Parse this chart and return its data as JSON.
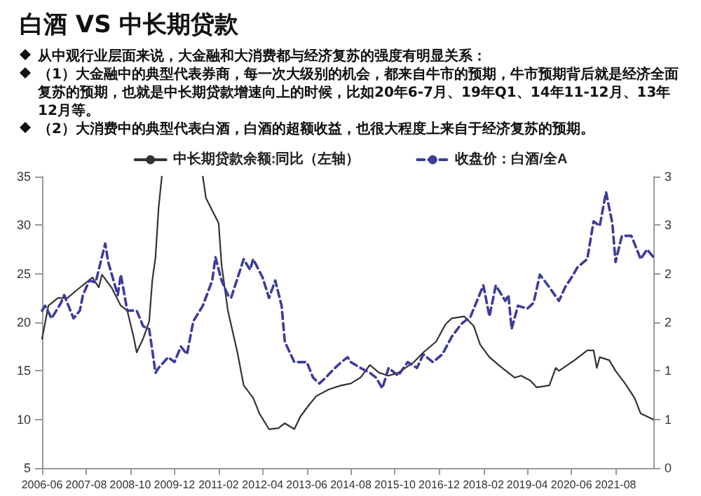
{
  "chart_data": {
    "type": "line",
    "title": "白酒 VS 中长期贷款",
    "annotations": [
      "从中观行业层面来说，大金融和大消费都与经济复苏的强度有明显关系：",
      "（1）大金融中的典型代表券商，每一次大级别的机会，都来自牛市的预期，牛市预期背后就是经济全面复苏的预期，也就是中长期贷款增速向上的时候，比如20年6-7月、19年Q1、14年11-12月、13年12月等。",
      "（2）大消费中的典型代表白酒，白酒的超额收益，也很大程度上来自于经济复苏的预期。"
    ],
    "xlim": [
      "2006-06",
      "2022-08"
    ],
    "xticks": [
      "2006-06",
      "2007-08",
      "2008-10",
      "2009-12",
      "2011-02",
      "2012-04",
      "2013-06",
      "2014-08",
      "2015-10",
      "2016-12",
      "2018-02",
      "2019-04",
      "2020-06",
      "2021-08"
    ],
    "ylim": [
      5,
      35
    ],
    "yticks": [
      5,
      10,
      15,
      20,
      25,
      30,
      35
    ],
    "y2lim": [
      0,
      3
    ],
    "y2ticks": [
      {
        "value": 0,
        "label": "0"
      },
      {
        "value": 0.5,
        "label": "1"
      },
      {
        "value": 1,
        "label": "1"
      },
      {
        "value": 1.5,
        "label": "2"
      },
      {
        "value": 2,
        "label": "2"
      },
      {
        "value": 2.5,
        "label": "3"
      },
      {
        "value": 3,
        "label": "3"
      }
    ],
    "grid": false,
    "legend": "top",
    "marker": "none",
    "series": [
      {
        "name": "中长期贷款余额:同比（左轴）",
        "color": "#333333",
        "line_style": "solid",
        "x": [
          "2006-06",
          "2006-08",
          "2006-11",
          "2007-02",
          "2007-05",
          "2007-10",
          "2007-12",
          "2008-01",
          "2008-04",
          "2008-07",
          "2008-09",
          "2008-11",
          "2008-12",
          "2009-02",
          "2009-04",
          "2009-05",
          "2009-06",
          "2009-07",
          "2009-08",
          "2010-01",
          "2010-09",
          "2010-10",
          "2010-12",
          "2011-02",
          "2011-03",
          "2011-05",
          "2011-08",
          "2011-10",
          "2012-01",
          "2012-03",
          "2012-06",
          "2012-09",
          "2012-11",
          "2013-02",
          "2013-04",
          "2013-07",
          "2013-09",
          "2014-01",
          "2014-05",
          "2014-08",
          "2014-11",
          "2015-02",
          "2015-05",
          "2015-08",
          "2015-11",
          "2016-04",
          "2016-07",
          "2016-11",
          "2017-02",
          "2017-04",
          "2017-08",
          "2017-11",
          "2018-01",
          "2018-04",
          "2018-08",
          "2018-12",
          "2019-02",
          "2019-05",
          "2019-07",
          "2019-11",
          "2020-01",
          "2020-02",
          "2020-07",
          "2020-11",
          "2021-01",
          "2021-02",
          "2021-03",
          "2021-06",
          "2021-08",
          "2021-11",
          "2022-02",
          "2022-04",
          "2022-06",
          "2022-08"
        ],
        "values": [
          18.3,
          21.7,
          22.5,
          22.5,
          23.3,
          24.6,
          23.6,
          24.9,
          23.6,
          21.7,
          21.2,
          18.5,
          16.9,
          18.3,
          20.1,
          24.3,
          26.7,
          31.8,
          35,
          null,
          35,
          32.8,
          31.5,
          30.2,
          25.9,
          21.2,
          16.9,
          13.5,
          12.2,
          10.6,
          9.0,
          9.1,
          9.6,
          9.0,
          10.3,
          11.6,
          12.4,
          13.1,
          13.5,
          13.7,
          14.3,
          15.6,
          14.8,
          14.5,
          14.8,
          15.9,
          16.9,
          18.0,
          19.8,
          20.4,
          20.6,
          19.6,
          17.7,
          16.4,
          15.3,
          14.3,
          14.5,
          14.0,
          13.3,
          13.5,
          15.3,
          15.0,
          16.1,
          17.1,
          17.1,
          15.3,
          16.4,
          16.1,
          15.0,
          13.7,
          12.2,
          10.6,
          10.3,
          10.0
        ]
      },
      {
        "name": "收盘价：白酒/全A",
        "color": "#3c3c9c",
        "line_style": "dashed",
        "axis": "y2",
        "x": [
          "2006-06",
          "2006-07",
          "2006-09",
          "2006-12",
          "2007-01",
          "2007-04",
          "2007-06",
          "2007-07",
          "2007-09",
          "2007-11",
          "2008-02",
          "2008-03",
          "2008-06",
          "2008-07",
          "2008-09",
          "2008-12",
          "2009-02",
          "2009-04",
          "2009-06",
          "2009-07",
          "2009-10",
          "2009-12",
          "2010-02",
          "2010-04",
          "2010-06",
          "2010-09",
          "2010-12",
          "2011-01",
          "2011-03",
          "2011-05",
          "2011-06",
          "2011-10",
          "2011-12",
          "2012-01",
          "2012-04",
          "2012-06",
          "2012-08",
          "2012-10",
          "2012-11",
          "2013-02",
          "2013-06",
          "2013-08",
          "2013-10",
          "2013-12",
          "2014-03",
          "2014-05",
          "2014-07",
          "2014-08",
          "2014-11",
          "2015-02",
          "2015-04",
          "2015-06",
          "2015-08",
          "2015-11",
          "2016-02",
          "2016-05",
          "2016-07",
          "2016-10",
          "2017-01",
          "2017-04",
          "2017-07",
          "2017-10",
          "2017-12",
          "2018-02",
          "2018-04",
          "2018-06",
          "2018-09",
          "2018-10",
          "2018-11",
          "2019-01",
          "2019-04",
          "2019-06",
          "2019-08",
          "2019-11",
          "2020-02",
          "2020-04",
          "2020-06",
          "2020-08",
          "2020-11",
          "2021-01",
          "2021-03",
          "2021-05",
          "2021-07",
          "2021-08",
          "2021-10",
          "2022-01",
          "2022-04",
          "2022-06",
          "2022-08"
        ],
        "values": [
          1.62,
          1.67,
          1.54,
          1.7,
          1.78,
          1.54,
          1.62,
          1.78,
          1.93,
          1.91,
          2.31,
          2.12,
          1.78,
          1.99,
          1.62,
          1.62,
          1.46,
          1.43,
          0.98,
          1.03,
          1.14,
          1.09,
          1.25,
          1.17,
          1.51,
          1.67,
          1.93,
          2.17,
          1.93,
          1.78,
          1.75,
          2.15,
          2.04,
          2.15,
          1.96,
          1.75,
          1.93,
          1.67,
          1.3,
          1.09,
          1.09,
          0.93,
          0.87,
          0.93,
          1.03,
          1.09,
          1.14,
          1.09,
          1.03,
          0.98,
          0.93,
          0.82,
          1.03,
          0.95,
          1.09,
          1.03,
          1.17,
          1.09,
          1.17,
          1.35,
          1.48,
          1.56,
          1.72,
          1.88,
          1.56,
          1.88,
          1.72,
          1.78,
          1.43,
          1.67,
          1.64,
          1.7,
          1.99,
          1.86,
          1.72,
          1.86,
          1.96,
          2.07,
          2.15,
          2.54,
          2.49,
          2.84,
          2.52,
          2.12,
          2.39,
          2.39,
          2.15,
          2.25,
          2.17
        ]
      }
    ]
  }
}
